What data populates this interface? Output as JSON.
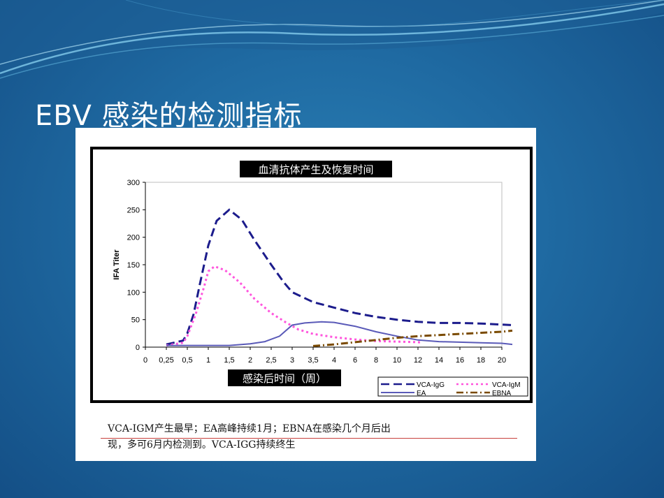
{
  "slide": {
    "title": "EBV 感染的检测指标",
    "caption": [
      "VCA-IGM产生最早；EA高峰持续1月；EBNA在感染几个月后出",
      "现，多可6月内检测到。VCA-IGG持续终生"
    ]
  },
  "chart_data": {
    "type": "line",
    "title": "血清抗体产生及恢复时间",
    "xlabel": "感染后时间（周）",
    "ylabel": "IFA Titer",
    "categories": [
      "0",
      "0,25",
      "0,5",
      "1",
      "1,5",
      "2",
      "2,5",
      "3",
      "3,5",
      "4",
      "6",
      "8",
      "10",
      "12",
      "14",
      "16",
      "18",
      "20"
    ],
    "ylim": [
      0,
      300
    ],
    "yticks": [
      0,
      50,
      100,
      150,
      200,
      250,
      300
    ],
    "grid": false,
    "legend_position": "bottom-right",
    "series": [
      {
        "name": "VCA-IgG",
        "style": "dashed",
        "color": "#1c1c8c",
        "points": [
          [
            1,
            5
          ],
          [
            1.8,
            12
          ],
          [
            2,
            25
          ],
          [
            2.3,
            60
          ],
          [
            2.6,
            115
          ],
          [
            3,
            185
          ],
          [
            3.4,
            230
          ],
          [
            4,
            250
          ],
          [
            4.6,
            232
          ],
          [
            5.2,
            195
          ],
          [
            6,
            150
          ],
          [
            6.6,
            118
          ],
          [
            7,
            100
          ],
          [
            8,
            82
          ],
          [
            9,
            72
          ],
          [
            10,
            62
          ],
          [
            11,
            55
          ],
          [
            12,
            50
          ],
          [
            13,
            46
          ],
          [
            14,
            44
          ],
          [
            15,
            44
          ],
          [
            16,
            43
          ],
          [
            17,
            41
          ],
          [
            17.5,
            40
          ]
        ]
      },
      {
        "name": "VCA-IgM",
        "style": "dotted",
        "color": "#ff55dd",
        "points": [
          [
            1,
            3
          ],
          [
            1.8,
            8
          ],
          [
            2,
            20
          ],
          [
            2.4,
            60
          ],
          [
            2.8,
            110
          ],
          [
            3,
            138
          ],
          [
            3.3,
            147
          ],
          [
            3.8,
            140
          ],
          [
            4.5,
            118
          ],
          [
            5.2,
            88
          ],
          [
            6,
            62
          ],
          [
            6.7,
            45
          ],
          [
            7.3,
            32
          ],
          [
            8,
            24
          ],
          [
            9,
            18
          ],
          [
            10,
            14
          ],
          [
            11,
            11
          ],
          [
            12,
            10
          ],
          [
            13,
            9
          ],
          [
            13.2,
            8
          ]
        ]
      },
      {
        "name": "EA",
        "style": "solid",
        "color": "#5a5ab8",
        "points": [
          [
            1,
            3
          ],
          [
            2,
            3
          ],
          [
            3,
            3
          ],
          [
            4,
            3
          ],
          [
            5,
            6
          ],
          [
            5.7,
            10
          ],
          [
            6.4,
            20
          ],
          [
            7,
            40
          ],
          [
            7.6,
            44
          ],
          [
            8.4,
            46
          ],
          [
            9,
            45
          ],
          [
            10,
            38
          ],
          [
            11,
            28
          ],
          [
            12,
            20
          ],
          [
            13,
            13
          ],
          [
            14,
            10
          ],
          [
            15,
            9
          ],
          [
            16,
            8
          ],
          [
            17,
            7
          ],
          [
            17.5,
            5
          ]
        ]
      },
      {
        "name": "EBNA",
        "style": "dashdot",
        "color": "#7a4a00",
        "points": [
          [
            8,
            2
          ],
          [
            9,
            5
          ],
          [
            10,
            9
          ],
          [
            11,
            13
          ],
          [
            12,
            17
          ],
          [
            13,
            20
          ],
          [
            14,
            22
          ],
          [
            15,
            24
          ],
          [
            16,
            26
          ],
          [
            17,
            28
          ],
          [
            17.5,
            30
          ]
        ]
      }
    ]
  }
}
